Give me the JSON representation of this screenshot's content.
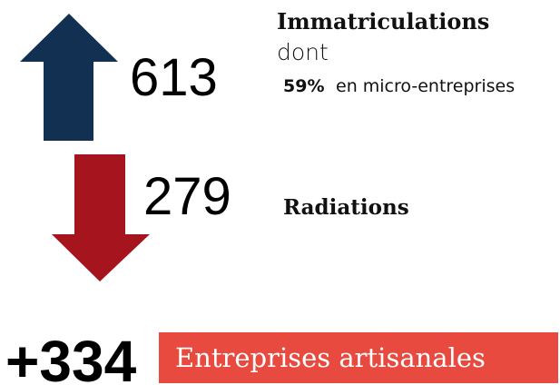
{
  "immatriculations": {
    "value": "613",
    "label": "Immatriculations",
    "dont": "dont",
    "share": "59%",
    "share_label": "en micro-entreprises"
  },
  "radiations": {
    "value": "279",
    "label": "Radiations"
  },
  "solde": {
    "value": "+334",
    "label": "Entreprises artisanales"
  }
}
